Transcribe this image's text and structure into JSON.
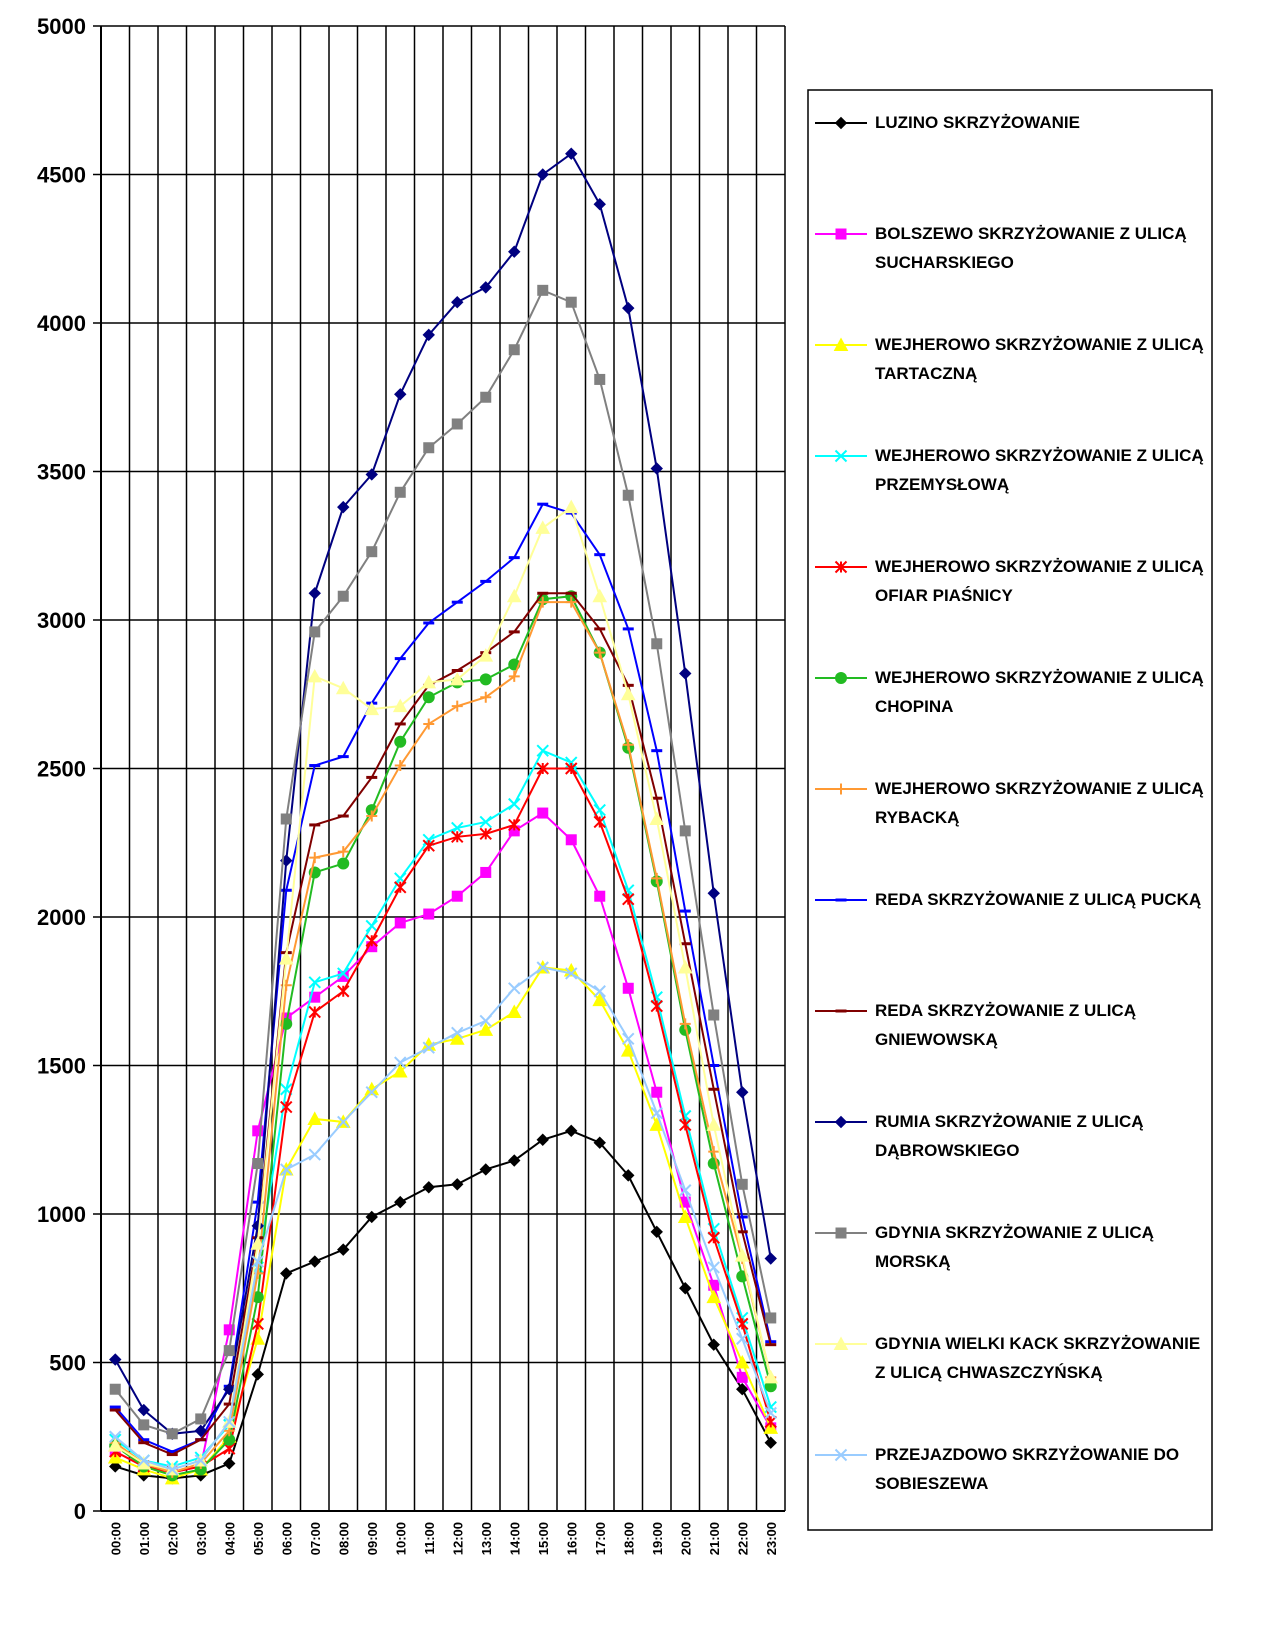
{
  "chart_data": {
    "type": "line",
    "categories": [
      "00:00",
      "01:00",
      "02:00",
      "03:00",
      "04:00",
      "05:00",
      "06:00",
      "07:00",
      "08:00",
      "09:00",
      "10:00",
      "11:00",
      "12:00",
      "13:00",
      "14:00",
      "15:00",
      "16:00",
      "17:00",
      "18:00",
      "19:00",
      "20:00",
      "21:00",
      "22:00",
      "23:00"
    ],
    "ylim": [
      0,
      5000
    ],
    "yticks": [
      0,
      500,
      1000,
      1500,
      2000,
      2500,
      3000,
      3500,
      4000,
      4500,
      5000
    ],
    "grid": true,
    "legend": "right",
    "series": [
      {
        "name": "LUZINO SKRZYŻOWANIE",
        "color": "#000000",
        "marker": "diamond",
        "values": [
          150,
          120,
          110,
          120,
          160,
          460,
          800,
          840,
          880,
          990,
          1040,
          1090,
          1100,
          1150,
          1180,
          1250,
          1280,
          1240,
          1130,
          940,
          750,
          560,
          410,
          230
        ]
      },
      {
        "name": "BOLSZEWO SKRZYŻOWANIE Z ULICĄ SUCHARSKIEGO",
        "color": "#ff00ff",
        "marker": "square",
        "values": [
          200,
          150,
          130,
          150,
          610,
          1280,
          1660,
          1730,
          1800,
          1900,
          1980,
          2010,
          2070,
          2150,
          2290,
          2350,
          2260,
          2070,
          1760,
          1410,
          1040,
          760,
          450,
          280
        ]
      },
      {
        "name": "WEJHEROWO SKRZYŻOWANIE Z ULICĄ TARTACZNĄ",
        "color": "#ffff00",
        "marker": "triangle",
        "values": [
          180,
          140,
          110,
          140,
          250,
          580,
          1150,
          1320,
          1310,
          1420,
          1480,
          1570,
          1590,
          1620,
          1680,
          1830,
          1820,
          1720,
          1550,
          1300,
          990,
          720,
          500,
          280
        ]
      },
      {
        "name": "WEJHEROWO SKRZYŻOWANIE Z ULICĄ PRZEMYSŁOWĄ",
        "color": "#00ffff",
        "marker": "x",
        "values": [
          240,
          170,
          150,
          180,
          290,
          820,
          1420,
          1780,
          1810,
          1970,
          2130,
          2260,
          2300,
          2320,
          2380,
          2560,
          2520,
          2360,
          2090,
          1730,
          1330,
          950,
          650,
          350
        ]
      },
      {
        "name": "WEJHEROWO SKRZYŻOWANIE Z ULICĄ OFIAR PIAŚNICY",
        "color": "#ff0000",
        "marker": "star",
        "values": [
          200,
          150,
          130,
          150,
          210,
          630,
          1360,
          1680,
          1750,
          1920,
          2100,
          2240,
          2270,
          2280,
          2310,
          2500,
          2500,
          2320,
          2060,
          1700,
          1300,
          920,
          630,
          300
        ]
      },
      {
        "name": "WEJHEROWO SKRZYŻOWANIE Z ULICĄ CHOPINA",
        "color": "#22bb22",
        "marker": "circle",
        "values": [
          220,
          150,
          120,
          140,
          240,
          720,
          1640,
          2150,
          2180,
          2360,
          2590,
          2740,
          2790,
          2800,
          2850,
          3070,
          3080,
          2890,
          2570,
          2120,
          1620,
          1170,
          790,
          420
        ]
      },
      {
        "name": "WEJHEROWO SKRZYŻOWANIE Z ULICĄ RYBACKĄ",
        "color": "#ff9933",
        "marker": "plus",
        "values": [
          230,
          160,
          130,
          160,
          270,
          800,
          1770,
          2200,
          2220,
          2340,
          2510,
          2650,
          2710,
          2740,
          2810,
          3060,
          3060,
          2890,
          2580,
          2130,
          1640,
          1210,
          850,
          450
        ]
      },
      {
        "name": "REDA SKRZYŻOWANIE Z ULICĄ PUCKĄ",
        "color": "#0000ff",
        "marker": "dash",
        "values": [
          350,
          240,
          200,
          240,
          420,
          1040,
          2090,
          2510,
          2540,
          2720,
          2870,
          2990,
          3060,
          3130,
          3210,
          3390,
          3360,
          3220,
          2970,
          2560,
          2020,
          1500,
          990,
          570
        ]
      },
      {
        "name": "REDA SKRZYŻOWANIE Z ULICĄ GNIEWOWSKĄ",
        "color": "#800000",
        "marker": "dash",
        "values": [
          340,
          230,
          190,
          240,
          360,
          920,
          1880,
          2310,
          2340,
          2470,
          2650,
          2780,
          2830,
          2890,
          2960,
          3090,
          3090,
          2970,
          2780,
          2400,
          1910,
          1420,
          940,
          560
        ]
      },
      {
        "name": "RUMIA SKRZYŻOWANIE Z ULICĄ DĄBROWSKIEGO",
        "color": "#000080",
        "marker": "diamond",
        "values": [
          510,
          340,
          260,
          270,
          410,
          960,
          2190,
          3090,
          3380,
          3490,
          3760,
          3960,
          4070,
          4120,
          4240,
          4500,
          4570,
          4400,
          4050,
          3510,
          2820,
          2080,
          1410,
          850
        ]
      },
      {
        "name": "GDYNIA SKRZYŻOWANIE Z ULICĄ MORSKĄ",
        "color": "#808080",
        "marker": "square",
        "values": [
          410,
          290,
          260,
          310,
          540,
          1170,
          2330,
          2960,
          3080,
          3230,
          3430,
          3580,
          3660,
          3750,
          3910,
          4110,
          4070,
          3810,
          3420,
          2920,
          2290,
          1670,
          1100,
          650
        ]
      },
      {
        "name": "GDYNIA WIELKI KACK SKRZYŻOWANIE Z ULICĄ CHWASZCZYŃSKĄ",
        "color": "#ffff99",
        "marker": "triangle",
        "values": [
          220,
          160,
          140,
          170,
          300,
          900,
          1860,
          2810,
          2770,
          2700,
          2710,
          2790,
          2800,
          2880,
          3080,
          3310,
          3380,
          3080,
          2750,
          2330,
          1830,
          1300,
          860,
          450
        ]
      },
      {
        "name": "PRZEJAZDOWO SKRZYŻOWANIE DO SOBIESZEWA",
        "color": "#99ccff",
        "marker": "x",
        "values": [
          250,
          170,
          140,
          170,
          300,
          840,
          1150,
          1200,
          1310,
          1410,
          1510,
          1560,
          1610,
          1650,
          1760,
          1830,
          1810,
          1750,
          1590,
          1340,
          1080,
          820,
          580,
          330
        ]
      }
    ]
  }
}
